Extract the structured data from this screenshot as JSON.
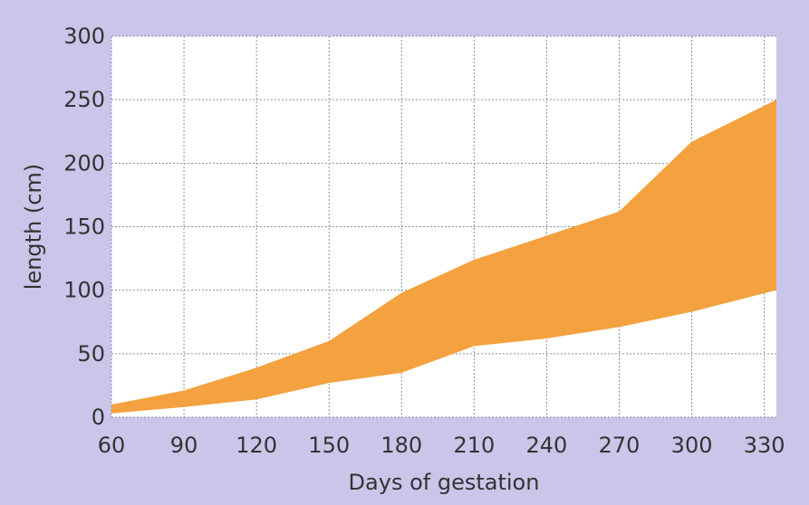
{
  "chart_data": {
    "type": "area",
    "title": "",
    "xlabel": "Days of gestation",
    "ylabel": "length (cm)",
    "xlim": [
      60,
      335
    ],
    "ylim": [
      0,
      300
    ],
    "x_ticks": [
      60,
      90,
      120,
      150,
      180,
      210,
      240,
      270,
      300,
      330
    ],
    "y_ticks": [
      0,
      50,
      100,
      150,
      200,
      250,
      300
    ],
    "x_tick_labels": [
      "60",
      "90",
      "120",
      "150",
      "180",
      "210",
      "240",
      "270",
      "300",
      "330"
    ],
    "y_tick_labels": [
      "0",
      "50",
      "100",
      "150",
      "200",
      "250",
      "300"
    ],
    "grid": true,
    "band": {
      "color": "#f3a23f",
      "upper": [
        [
          60,
          10
        ],
        [
          90,
          21
        ],
        [
          120,
          39
        ],
        [
          150,
          60
        ],
        [
          180,
          98
        ],
        [
          210,
          124
        ],
        [
          240,
          143
        ],
        [
          270,
          162
        ],
        [
          300,
          217
        ],
        [
          335,
          250
        ]
      ],
      "lower": [
        [
          60,
          3
        ],
        [
          90,
          8
        ],
        [
          120,
          14
        ],
        [
          150,
          27
        ],
        [
          180,
          35
        ],
        [
          210,
          56
        ],
        [
          240,
          62
        ],
        [
          270,
          71
        ],
        [
          300,
          83
        ],
        [
          335,
          100
        ]
      ]
    },
    "background_color": "#c9c6ea",
    "plot_background_color": "#ffffff"
  }
}
